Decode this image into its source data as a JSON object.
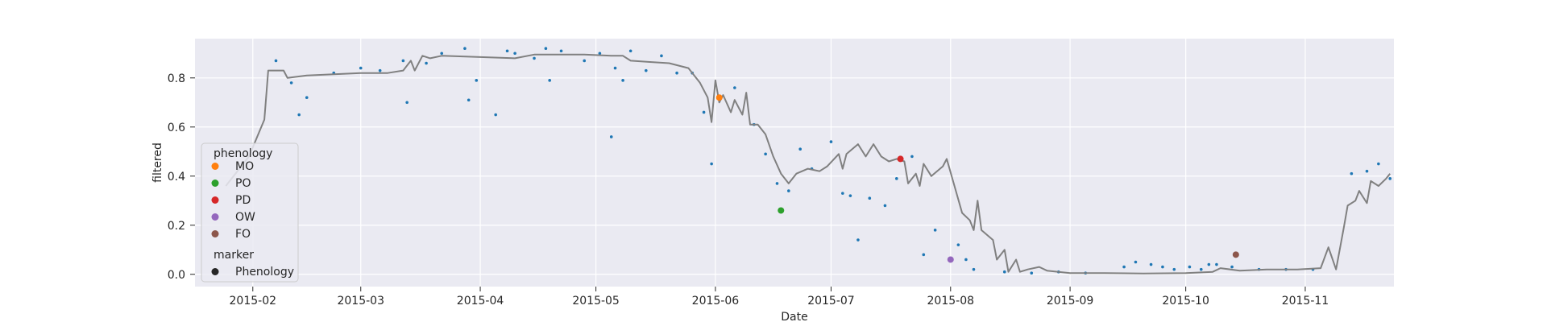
{
  "chart_data": {
    "type": "scatter",
    "xlabel": "Date",
    "ylabel": "filtered",
    "xlim": [
      "2015-01-17",
      "2015-11-24"
    ],
    "ylim": [
      -0.05,
      0.96
    ],
    "x_ticks": [
      "2015-02",
      "2015-03",
      "2015-04",
      "2015-05",
      "2015-06",
      "2015-07",
      "2015-08",
      "2015-09",
      "2015-10",
      "2015-11"
    ],
    "y_ticks": [
      0.0,
      0.2,
      0.4,
      0.6,
      0.8
    ],
    "grid": true,
    "legend_placement": "lower-left",
    "colors": {
      "background": "#eaeaf2",
      "grid": "#ffffff",
      "line": "#808080",
      "raw_points": "#1f77b4",
      "text": "#262626"
    },
    "legend": {
      "title_phenology": "phenology",
      "title_marker": "marker",
      "marker_label": "Phenology"
    },
    "series": [
      {
        "kind": "line",
        "color": "#808080",
        "points": [
          [
            "2015-01-25",
            0.36
          ],
          [
            "2015-01-31",
            0.48
          ],
          [
            "2015-02-04",
            0.63
          ],
          [
            "2015-02-05",
            0.83
          ],
          [
            "2015-02-09",
            0.83
          ],
          [
            "2015-02-10",
            0.8
          ],
          [
            "2015-02-15",
            0.81
          ],
          [
            "2015-02-22",
            0.815
          ],
          [
            "2015-03-01",
            0.82
          ],
          [
            "2015-03-08",
            0.82
          ],
          [
            "2015-03-12",
            0.83
          ],
          [
            "2015-03-14",
            0.87
          ],
          [
            "2015-03-15",
            0.83
          ],
          [
            "2015-03-17",
            0.89
          ],
          [
            "2015-03-19",
            0.88
          ],
          [
            "2015-03-22",
            0.89
          ],
          [
            "2015-04-01",
            0.885
          ],
          [
            "2015-04-10",
            0.88
          ],
          [
            "2015-04-15",
            0.895
          ],
          [
            "2015-04-20",
            0.895
          ],
          [
            "2015-04-28",
            0.895
          ],
          [
            "2015-05-05",
            0.89
          ],
          [
            "2015-05-08",
            0.89
          ],
          [
            "2015-05-10",
            0.87
          ],
          [
            "2015-05-15",
            0.865
          ],
          [
            "2015-05-20",
            0.86
          ],
          [
            "2015-05-25",
            0.84
          ],
          [
            "2015-05-28",
            0.78
          ],
          [
            "2015-05-30",
            0.72
          ],
          [
            "2015-05-31",
            0.62
          ],
          [
            "2015-06-01",
            0.79
          ],
          [
            "2015-06-02",
            0.7
          ],
          [
            "2015-06-03",
            0.73
          ],
          [
            "2015-06-05",
            0.66
          ],
          [
            "2015-06-06",
            0.71
          ],
          [
            "2015-06-08",
            0.65
          ],
          [
            "2015-06-09",
            0.74
          ],
          [
            "2015-06-10",
            0.61
          ],
          [
            "2015-06-12",
            0.61
          ],
          [
            "2015-06-14",
            0.57
          ],
          [
            "2015-06-16",
            0.48
          ],
          [
            "2015-06-18",
            0.41
          ],
          [
            "2015-06-20",
            0.37
          ],
          [
            "2015-06-22",
            0.41
          ],
          [
            "2015-06-25",
            0.43
          ],
          [
            "2015-06-28",
            0.42
          ],
          [
            "2015-06-30",
            0.44
          ],
          [
            "2015-07-03",
            0.49
          ],
          [
            "2015-07-04",
            0.43
          ],
          [
            "2015-07-05",
            0.49
          ],
          [
            "2015-07-08",
            0.53
          ],
          [
            "2015-07-10",
            0.48
          ],
          [
            "2015-07-12",
            0.53
          ],
          [
            "2015-07-14",
            0.48
          ],
          [
            "2015-07-16",
            0.46
          ],
          [
            "2015-07-18",
            0.47
          ],
          [
            "2015-07-20",
            0.46
          ],
          [
            "2015-07-21",
            0.37
          ],
          [
            "2015-07-23",
            0.41
          ],
          [
            "2015-07-24",
            0.36
          ],
          [
            "2015-07-25",
            0.45
          ],
          [
            "2015-07-27",
            0.4
          ],
          [
            "2015-07-30",
            0.44
          ],
          [
            "2015-07-31",
            0.47
          ],
          [
            "2015-08-02",
            0.36
          ],
          [
            "2015-08-04",
            0.25
          ],
          [
            "2015-08-06",
            0.22
          ],
          [
            "2015-08-07",
            0.18
          ],
          [
            "2015-08-08",
            0.3
          ],
          [
            "2015-08-09",
            0.18
          ],
          [
            "2015-08-12",
            0.14
          ],
          [
            "2015-08-13",
            0.06
          ],
          [
            "2015-08-15",
            0.1
          ],
          [
            "2015-08-16",
            0.01
          ],
          [
            "2015-08-18",
            0.06
          ],
          [
            "2015-08-19",
            0.01
          ],
          [
            "2015-08-21",
            0.02
          ],
          [
            "2015-08-24",
            0.03
          ],
          [
            "2015-08-26",
            0.015
          ],
          [
            "2015-09-01",
            0.005
          ],
          [
            "2015-09-10",
            0.005
          ],
          [
            "2015-09-20",
            0.003
          ],
          [
            "2015-10-01",
            0.005
          ],
          [
            "2015-10-08",
            0.01
          ],
          [
            "2015-10-10",
            0.025
          ],
          [
            "2015-10-15",
            0.015
          ],
          [
            "2015-10-22",
            0.02
          ],
          [
            "2015-10-30",
            0.02
          ],
          [
            "2015-11-05",
            0.025
          ],
          [
            "2015-11-07",
            0.11
          ],
          [
            "2015-11-09",
            0.02
          ],
          [
            "2015-11-11",
            0.19
          ],
          [
            "2015-11-12",
            0.28
          ],
          [
            "2015-11-14",
            0.3
          ],
          [
            "2015-11-15",
            0.34
          ],
          [
            "2015-11-17",
            0.29
          ],
          [
            "2015-11-18",
            0.38
          ],
          [
            "2015-11-20",
            0.36
          ],
          [
            "2015-11-22",
            0.39
          ],
          [
            "2015-11-23",
            0.41
          ]
        ]
      },
      {
        "kind": "scatter",
        "color": "#1f77b4",
        "points": [
          [
            "2015-02-07",
            0.87
          ],
          [
            "2015-02-11",
            0.78
          ],
          [
            "2015-02-13",
            0.65
          ],
          [
            "2015-02-15",
            0.72
          ],
          [
            "2015-02-22",
            0.82
          ],
          [
            "2015-03-01",
            0.84
          ],
          [
            "2015-03-06",
            0.83
          ],
          [
            "2015-03-12",
            0.87
          ],
          [
            "2015-03-13",
            0.7
          ],
          [
            "2015-03-18",
            0.86
          ],
          [
            "2015-03-22",
            0.9
          ],
          [
            "2015-03-28",
            0.92
          ],
          [
            "2015-03-29",
            0.71
          ],
          [
            "2015-03-31",
            0.79
          ],
          [
            "2015-04-05",
            0.65
          ],
          [
            "2015-04-08",
            0.91
          ],
          [
            "2015-04-10",
            0.9
          ],
          [
            "2015-04-15",
            0.88
          ],
          [
            "2015-04-18",
            0.92
          ],
          [
            "2015-04-19",
            0.79
          ],
          [
            "2015-04-22",
            0.91
          ],
          [
            "2015-04-28",
            0.87
          ],
          [
            "2015-05-02",
            0.9
          ],
          [
            "2015-05-05",
            0.56
          ],
          [
            "2015-05-06",
            0.84
          ],
          [
            "2015-05-08",
            0.79
          ],
          [
            "2015-05-10",
            0.91
          ],
          [
            "2015-05-14",
            0.83
          ],
          [
            "2015-05-18",
            0.89
          ],
          [
            "2015-05-22",
            0.82
          ],
          [
            "2015-05-26",
            0.82
          ],
          [
            "2015-05-29",
            0.66
          ],
          [
            "2015-05-31",
            0.45
          ],
          [
            "2015-06-06",
            0.76
          ],
          [
            "2015-06-11",
            0.61
          ],
          [
            "2015-06-14",
            0.49
          ],
          [
            "2015-06-17",
            0.37
          ],
          [
            "2015-06-20",
            0.34
          ],
          [
            "2015-06-23",
            0.51
          ],
          [
            "2015-06-26",
            0.43
          ],
          [
            "2015-07-01",
            0.54
          ],
          [
            "2015-07-04",
            0.33
          ],
          [
            "2015-07-06",
            0.32
          ],
          [
            "2015-07-08",
            0.14
          ],
          [
            "2015-07-11",
            0.31
          ],
          [
            "2015-07-15",
            0.28
          ],
          [
            "2015-07-18",
            0.39
          ],
          [
            "2015-07-22",
            0.48
          ],
          [
            "2015-07-25",
            0.08
          ],
          [
            "2015-07-28",
            0.18
          ],
          [
            "2015-08-03",
            0.12
          ],
          [
            "2015-08-05",
            0.06
          ],
          [
            "2015-08-07",
            0.02
          ],
          [
            "2015-08-15",
            0.01
          ],
          [
            "2015-08-22",
            0.005
          ],
          [
            "2015-08-29",
            0.01
          ],
          [
            "2015-09-05",
            0.005
          ],
          [
            "2015-09-15",
            0.03
          ],
          [
            "2015-09-18",
            0.05
          ],
          [
            "2015-09-22",
            0.04
          ],
          [
            "2015-09-25",
            0.03
          ],
          [
            "2015-09-28",
            0.02
          ],
          [
            "2015-10-02",
            0.03
          ],
          [
            "2015-10-05",
            0.02
          ],
          [
            "2015-10-07",
            0.04
          ],
          [
            "2015-10-09",
            0.04
          ],
          [
            "2015-10-13",
            0.03
          ],
          [
            "2015-10-20",
            0.02
          ],
          [
            "2015-10-27",
            0.02
          ],
          [
            "2015-11-03",
            0.02
          ],
          [
            "2015-11-13",
            0.41
          ],
          [
            "2015-11-17",
            0.42
          ],
          [
            "2015-11-20",
            0.45
          ],
          [
            "2015-11-23",
            0.39
          ]
        ]
      }
    ],
    "phenology_points": [
      {
        "label": "MO",
        "color": "#ff7f0e",
        "x": "2015-06-02",
        "y": 0.72
      },
      {
        "label": "PO",
        "color": "#2ca02c",
        "x": "2015-06-18",
        "y": 0.26
      },
      {
        "label": "PD",
        "color": "#d62728",
        "x": "2015-07-19",
        "y": 0.47
      },
      {
        "label": "OW",
        "color": "#9467bd",
        "x": "2015-08-01",
        "y": 0.06
      },
      {
        "label": "FO",
        "color": "#8c564b",
        "x": "2015-10-14",
        "y": 0.08
      }
    ]
  }
}
